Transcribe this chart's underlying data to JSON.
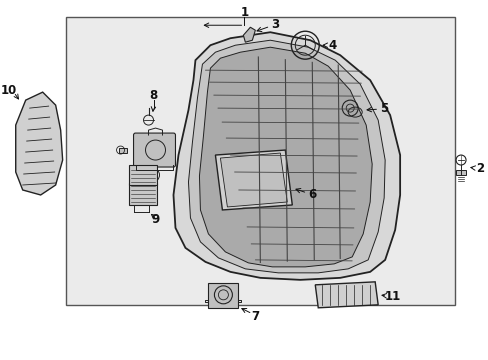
{
  "bg_color": "#ebebeb",
  "box_bg": "#e8e8e8",
  "line_color": "#222222",
  "white_bg": "#ffffff",
  "label_color": "#111111",
  "components": {
    "grille_shape": "curved_kidney",
    "items": [
      "1",
      "2",
      "3",
      "4",
      "5",
      "6",
      "7",
      "8",
      "9",
      "10",
      "11"
    ]
  }
}
